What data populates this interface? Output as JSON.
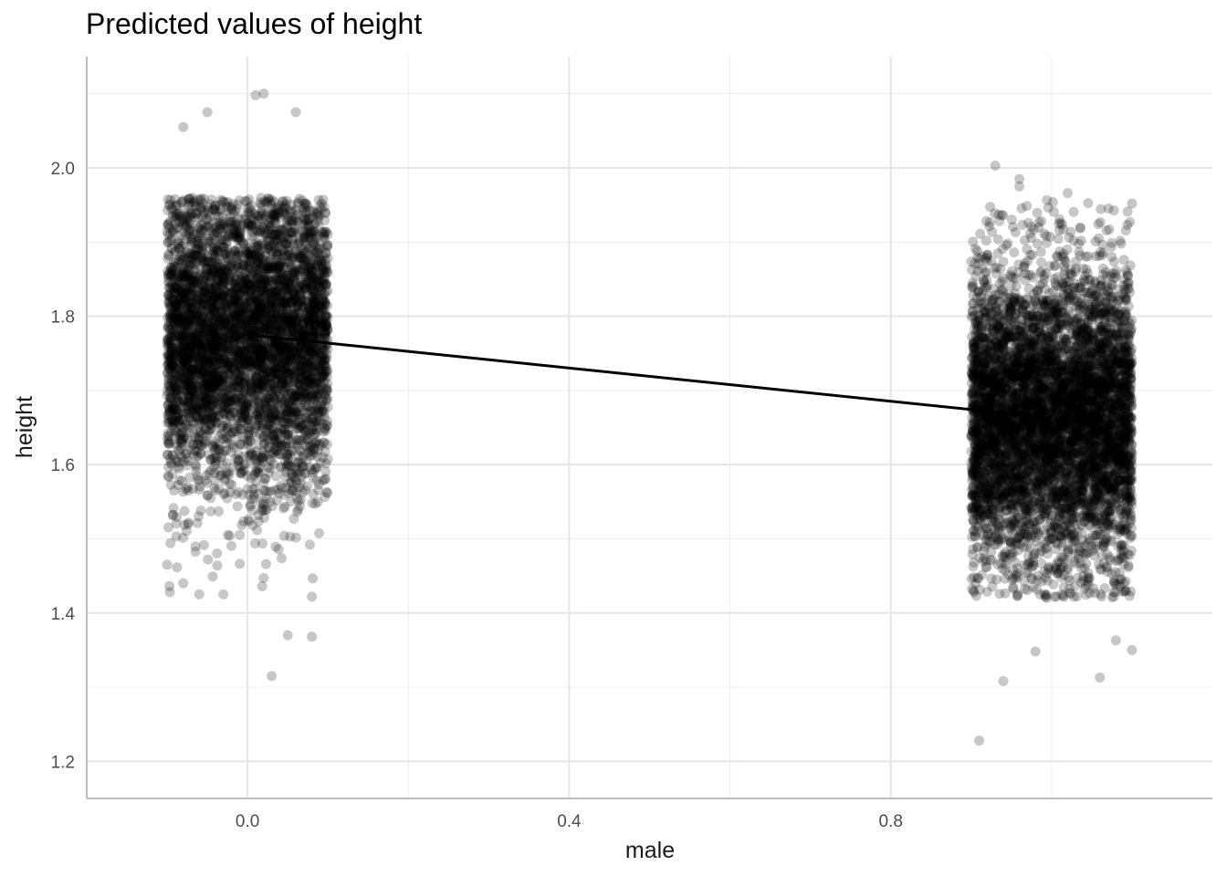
{
  "chart_data": {
    "type": "scatter",
    "title": "Predicted values of height",
    "xlabel": "male",
    "ylabel": "height",
    "xlim": [
      -0.2,
      1.2
    ],
    "ylim": [
      1.15,
      2.15
    ],
    "x_ticks": [
      0.0,
      0.4,
      0.8
    ],
    "x_tick_labels": [
      "0.0",
      "0.4",
      "0.8"
    ],
    "y_ticks": [
      1.2,
      1.4,
      1.6,
      1.8,
      2.0
    ],
    "y_tick_labels": [
      "1.2",
      "1.4",
      "1.6",
      "1.8",
      "2.0"
    ],
    "grid": true,
    "colors": {
      "points": "#000000",
      "line": "#000000",
      "grid_major": "#e5e5e5",
      "grid_minor": "#f0f0f0",
      "axis": "#bdbdbd"
    },
    "groups": [
      {
        "x": 0,
        "jitter_width": 0.1,
        "mean": 1.77,
        "sd": 0.1,
        "point_count": 5000,
        "outliers": [
          {
            "x": -0.1,
            "y": 1.465
          },
          {
            "x": -0.08,
            "y": 1.44
          },
          {
            "x": -0.06,
            "y": 1.425
          },
          {
            "x": -0.03,
            "y": 1.425
          },
          {
            "x": 0.02,
            "y": 1.447
          },
          {
            "x": 0.05,
            "y": 1.37
          },
          {
            "x": 0.08,
            "y": 1.368
          },
          {
            "x": 0.03,
            "y": 1.315
          },
          {
            "x": 0.08,
            "y": 1.422
          },
          {
            "x": 0.01,
            "y": 2.098
          },
          {
            "x": 0.02,
            "y": 2.1
          },
          {
            "x": -0.05,
            "y": 2.075
          },
          {
            "x": 0.06,
            "y": 2.075
          },
          {
            "x": -0.08,
            "y": 2.055
          }
        ]
      },
      {
        "x": 1,
        "jitter_width": 0.1,
        "mean": 1.665,
        "sd": 0.1,
        "point_count": 6000,
        "outliers": [
          {
            "x": 0.91,
            "y": 1.228
          },
          {
            "x": 0.94,
            "y": 1.308
          },
          {
            "x": 1.06,
            "y": 1.313
          },
          {
            "x": 0.98,
            "y": 1.348
          },
          {
            "x": 1.1,
            "y": 1.35
          },
          {
            "x": 1.08,
            "y": 1.363
          },
          {
            "x": 0.93,
            "y": 2.003
          },
          {
            "x": 0.96,
            "y": 1.985
          },
          {
            "x": 0.96,
            "y": 1.975
          },
          {
            "x": 1.02,
            "y": 1.966
          },
          {
            "x": 1.1,
            "y": 1.952
          }
        ]
      }
    ],
    "line": {
      "x": [
        0,
        1
      ],
      "y": [
        1.775,
        1.663
      ]
    }
  }
}
